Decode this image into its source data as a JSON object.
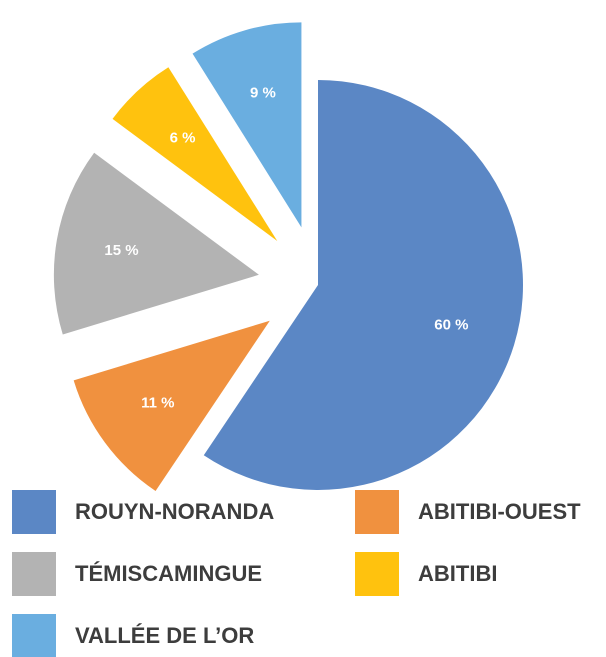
{
  "chart_data": {
    "type": "pie",
    "categories": [
      "ROUYN-NORANDA",
      "ABITIBI-OUEST",
      "TÉMISCAMINGUE",
      "ABITIBI",
      "VALLÉE DE L’OR"
    ],
    "values": [
      60,
      11,
      15,
      6,
      9
    ],
    "value_labels": [
      "60 %",
      "11 %",
      "15 %",
      "6 %",
      "9 %"
    ],
    "colors": [
      "#5b87c5",
      "#f0913f",
      "#b3b3b3",
      "#ffc20e",
      "#6aaee0"
    ]
  }
}
